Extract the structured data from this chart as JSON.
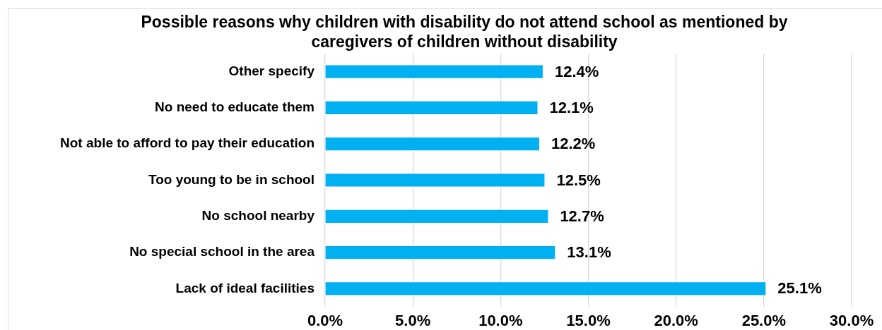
{
  "chart_data": {
    "type": "bar",
    "orientation": "horizontal",
    "title": "Possible reasons why children with disability do not attend school as mentioned by caregivers of children without disability",
    "categories": [
      "Other specify",
      "No need to educate them",
      "Not able to afford to pay their education",
      "Too young to be in school",
      "No school nearby",
      "No special school in the area",
      "Lack of ideal facilities"
    ],
    "values": [
      12.4,
      12.1,
      12.2,
      12.5,
      12.7,
      13.1,
      25.1
    ],
    "value_labels": [
      "12.4%",
      "12.1%",
      "12.2%",
      "12.5%",
      "12.7%",
      "13.1%",
      "25.1%"
    ],
    "color": "#00b0f0",
    "xlim": [
      0,
      30
    ],
    "xticks": [
      {
        "value": 0,
        "label": "0.0%"
      },
      {
        "value": 5,
        "label": "5.0%"
      },
      {
        "value": 10,
        "label": "10.0%"
      },
      {
        "value": 15,
        "label": "15.0%"
      },
      {
        "value": 20,
        "label": "20.0%"
      },
      {
        "value": 25,
        "label": "25.0%"
      },
      {
        "value": 30,
        "label": "30.0%"
      }
    ],
    "grid": "x"
  }
}
